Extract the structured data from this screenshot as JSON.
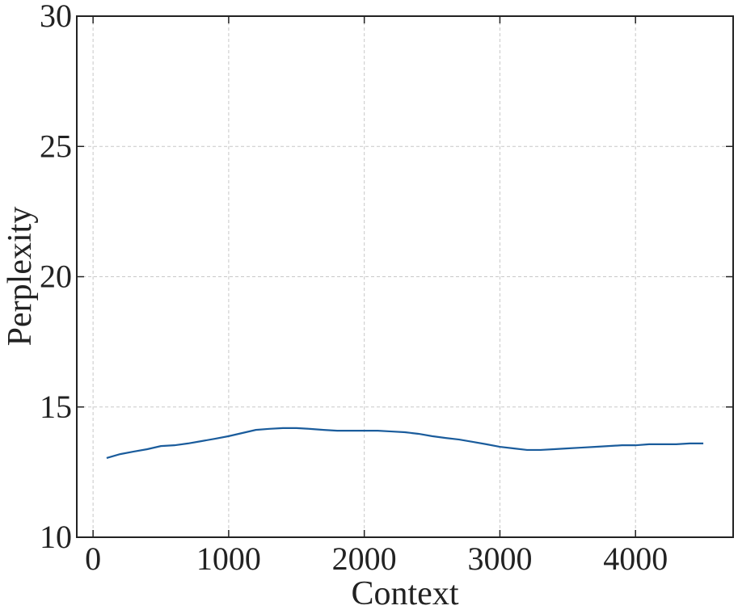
{
  "chart_data": {
    "type": "line",
    "x_label": "Context",
    "y_label": "Perplexity",
    "x": [
      100,
      200,
      300,
      400,
      500,
      600,
      700,
      800,
      900,
      1000,
      1100,
      1200,
      1300,
      1400,
      1500,
      1600,
      1700,
      1800,
      1900,
      2000,
      2100,
      2200,
      2300,
      2400,
      2500,
      2600,
      2700,
      2800,
      2900,
      3000,
      3100,
      3200,
      3300,
      3400,
      3500,
      3600,
      3700,
      3800,
      3900,
      4000,
      4100,
      4200,
      4300,
      4400,
      4500
    ],
    "series": [
      {
        "color": "#1a5c9c",
        "values": [
          13.04,
          13.19,
          13.29,
          13.38,
          13.5,
          13.53,
          13.6,
          13.69,
          13.78,
          13.88,
          14.0,
          14.12,
          14.16,
          14.19,
          14.19,
          14.16,
          14.12,
          14.09,
          14.09,
          14.09,
          14.09,
          14.06,
          14.03,
          13.97,
          13.88,
          13.81,
          13.75,
          13.66,
          13.57,
          13.47,
          13.41,
          13.35,
          13.35,
          13.38,
          13.41,
          13.44,
          13.47,
          13.5,
          13.53,
          13.53,
          13.57,
          13.57,
          13.57,
          13.6,
          13.6
        ]
      }
    ],
    "xlim": [
      -120,
      4720
    ],
    "ylim": [
      10,
      30
    ],
    "xticks": [
      0,
      1000,
      2000,
      3000,
      4000
    ],
    "yticks": [
      10,
      15,
      20,
      25,
      30
    ],
    "grid": true
  }
}
